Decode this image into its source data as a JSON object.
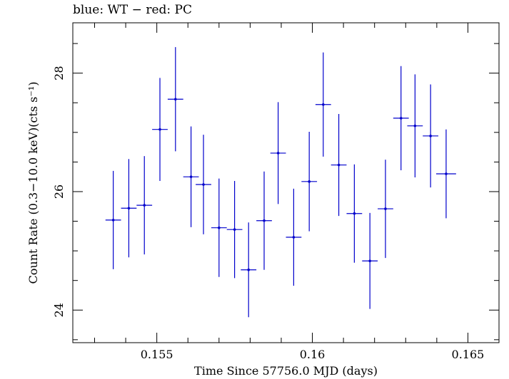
{
  "chart_data": {
    "type": "scatter",
    "title": "blue: WT − red: PC",
    "xlabel": "Time Since 57756.0 MJD (days)",
    "ylabel": "Count Rate (0.3−10.0 keV)(cts s⁻¹)",
    "xlim": [
      0.1523,
      0.166
    ],
    "ylim": [
      23.45,
      28.85
    ],
    "xticks": [
      0.155,
      0.16,
      0.165
    ],
    "xtick_labels": [
      "0.155",
      "0.16",
      "0.165"
    ],
    "yticks": [
      24,
      26,
      28
    ],
    "ytick_labels": [
      "24",
      "26",
      "28"
    ],
    "grid": false,
    "series": [
      {
        "color": "#0000cc",
        "points": [
          {
            "x": 0.1536,
            "y": 25.52,
            "xerr": 0.00025,
            "yerr": 0.83
          },
          {
            "x": 0.1541,
            "y": 25.72,
            "xerr": 0.00025,
            "yerr": 0.83
          },
          {
            "x": 0.1546,
            "y": 25.77,
            "xerr": 0.00025,
            "yerr": 0.83
          },
          {
            "x": 0.1551,
            "y": 27.05,
            "xerr": 0.00025,
            "yerr": 0.87
          },
          {
            "x": 0.1556,
            "y": 27.56,
            "xerr": 0.00025,
            "yerr": 0.88
          },
          {
            "x": 0.1561,
            "y": 26.25,
            "xerr": 0.00025,
            "yerr": 0.85
          },
          {
            "x": 0.1565,
            "y": 26.12,
            "xerr": 0.00025,
            "yerr": 0.84
          },
          {
            "x": 0.157,
            "y": 25.39,
            "xerr": 0.00025,
            "yerr": 0.83
          },
          {
            "x": 0.1575,
            "y": 25.36,
            "xerr": 0.00025,
            "yerr": 0.82
          },
          {
            "x": 0.15795,
            "y": 24.68,
            "xerr": 0.00025,
            "yerr": 0.8
          },
          {
            "x": 0.15845,
            "y": 25.51,
            "xerr": 0.00025,
            "yerr": 0.83
          },
          {
            "x": 0.1589,
            "y": 26.65,
            "xerr": 0.00025,
            "yerr": 0.86
          },
          {
            "x": 0.1594,
            "y": 25.23,
            "xerr": 0.00025,
            "yerr": 0.82
          },
          {
            "x": 0.1599,
            "y": 26.17,
            "xerr": 0.00025,
            "yerr": 0.84
          },
          {
            "x": 0.16035,
            "y": 27.47,
            "xerr": 0.00025,
            "yerr": 0.88
          },
          {
            "x": 0.16085,
            "y": 26.45,
            "xerr": 0.00025,
            "yerr": 0.86
          },
          {
            "x": 0.16135,
            "y": 25.63,
            "xerr": 0.00025,
            "yerr": 0.83
          },
          {
            "x": 0.16185,
            "y": 24.83,
            "xerr": 0.00025,
            "yerr": 0.81
          },
          {
            "x": 0.16235,
            "y": 25.71,
            "xerr": 0.00025,
            "yerr": 0.83
          },
          {
            "x": 0.16285,
            "y": 27.24,
            "xerr": 0.00025,
            "yerr": 0.88
          },
          {
            "x": 0.1633,
            "y": 27.11,
            "xerr": 0.00025,
            "yerr": 0.87
          },
          {
            "x": 0.1638,
            "y": 26.94,
            "xerr": 0.00025,
            "yerr": 0.87
          },
          {
            "x": 0.1643,
            "y": 26.3,
            "xerr": 0.00032,
            "yerr": 0.75
          }
        ]
      }
    ]
  }
}
